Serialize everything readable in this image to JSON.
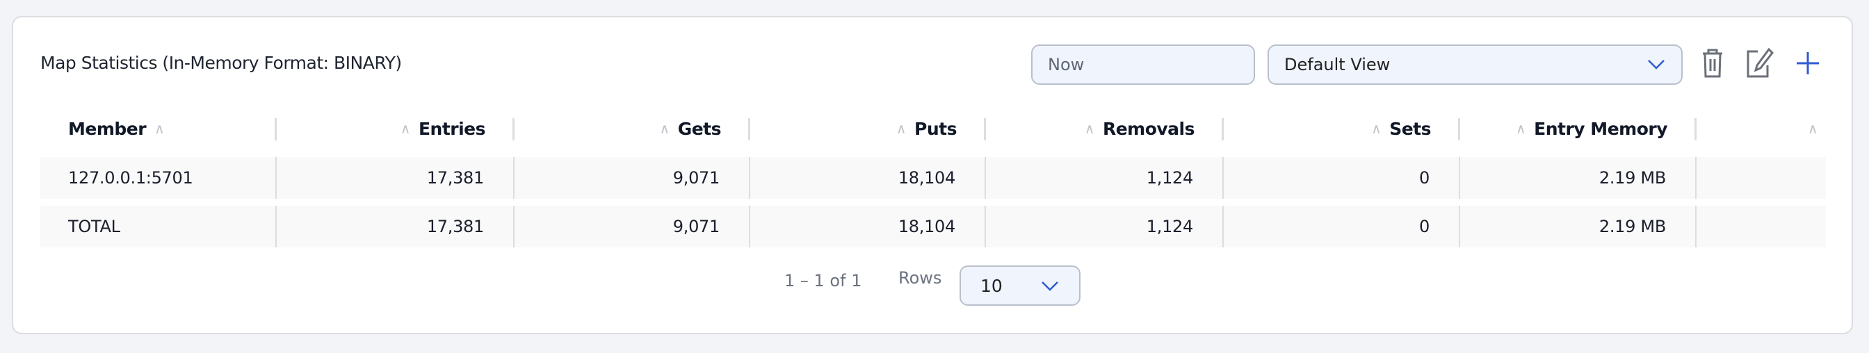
{
  "panel": {
    "title": "Map Statistics (In-Memory Format: BINARY)"
  },
  "toolbar": {
    "time_value": "Now",
    "view_value": "Default View",
    "icons": [
      "trash-icon",
      "edit-icon",
      "plus-icon"
    ],
    "accent": "#2f5bd3"
  },
  "table": {
    "columns": [
      "Member",
      "Entries",
      "Gets",
      "Puts",
      "Removals",
      "Sets",
      "Entry Memory",
      ""
    ],
    "rows": [
      [
        "127.0.0.1:5701",
        "17,381",
        "9,071",
        "18,104",
        "1,124",
        "0",
        "2.19 MB",
        ""
      ],
      [
        "TOTAL",
        "17,381",
        "9,071",
        "18,104",
        "1,124",
        "0",
        "2.19 MB",
        ""
      ]
    ]
  },
  "pagination": {
    "range": "1 – 1 of 1",
    "rows_label": "Rows",
    "rows_value": "10"
  }
}
